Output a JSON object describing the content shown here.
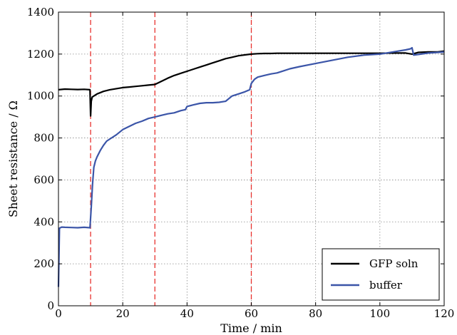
{
  "chart_data": {
    "type": "line",
    "xlabel": "Time / min",
    "ylabel": "Sheet resistance / Ω",
    "xlim": [
      0,
      120
    ],
    "ylim": [
      0,
      1400
    ],
    "xticks": [
      0,
      20,
      40,
      60,
      80,
      100,
      120
    ],
    "yticks": [
      0,
      200,
      400,
      600,
      800,
      1000,
      1200,
      1400
    ],
    "grid": true,
    "legend_position": "lower-right",
    "vertical_markers": {
      "x": [
        10,
        30,
        60
      ],
      "color": "#e8322e",
      "style": "dashed"
    },
    "series": [
      {
        "name": "GFP soln",
        "color": "#000000",
        "x": [
          0,
          2,
          4,
          6,
          8,
          9.8,
          10.0,
          10.2,
          10.5,
          11,
          12,
          14,
          16,
          18,
          20,
          22,
          24,
          26,
          28,
          30,
          32,
          34,
          36,
          38,
          40,
          42,
          44,
          46,
          48,
          50,
          52,
          54,
          56,
          58,
          60,
          62,
          64,
          66,
          68,
          70,
          75,
          80,
          85,
          90,
          95,
          100,
          105,
          108,
          110,
          112,
          115,
          118,
          120
        ],
        "y": [
          1030,
          1033,
          1032,
          1031,
          1032,
          1030,
          905,
          975,
          995,
          1000,
          1010,
          1022,
          1030,
          1035,
          1040,
          1043,
          1046,
          1049,
          1052,
          1055,
          1070,
          1085,
          1098,
          1108,
          1118,
          1128,
          1138,
          1148,
          1158,
          1168,
          1178,
          1185,
          1192,
          1196,
          1200,
          1202,
          1203,
          1203,
          1204,
          1204,
          1204,
          1204,
          1204,
          1204,
          1204,
          1204,
          1205,
          1205,
          1200,
          1208,
          1210,
          1210,
          1214
        ]
      },
      {
        "name": "buffer",
        "color": "#3b55a8",
        "x": [
          0,
          0.3,
          1,
          2,
          4,
          6,
          8,
          9.8,
          10.2,
          10.6,
          11,
          11.5,
          12,
          13,
          14,
          15,
          16,
          18,
          20,
          22,
          24,
          26,
          28,
          30,
          32,
          34,
          36,
          38,
          39.5,
          40,
          42,
          44,
          46,
          48,
          50,
          52,
          54,
          56,
          58,
          59.5,
          60,
          61,
          62,
          64,
          66,
          68,
          70,
          72,
          75,
          80,
          85,
          90,
          95,
          100,
          104,
          106,
          108,
          109.5,
          110,
          110.5,
          112,
          115,
          118,
          120
        ],
        "y": [
          90,
          370,
          375,
          374,
          373,
          372,
          374,
          372,
          470,
          580,
          660,
          690,
          710,
          740,
          765,
          785,
          795,
          815,
          840,
          855,
          870,
          880,
          893,
          900,
          908,
          915,
          920,
          930,
          935,
          950,
          958,
          965,
          968,
          968,
          970,
          975,
          1000,
          1010,
          1020,
          1030,
          1060,
          1080,
          1090,
          1098,
          1105,
          1110,
          1120,
          1130,
          1140,
          1155,
          1170,
          1185,
          1195,
          1200,
          1210,
          1215,
          1220,
          1225,
          1230,
          1195,
          1198,
          1205,
          1208,
          1210
        ]
      }
    ]
  }
}
